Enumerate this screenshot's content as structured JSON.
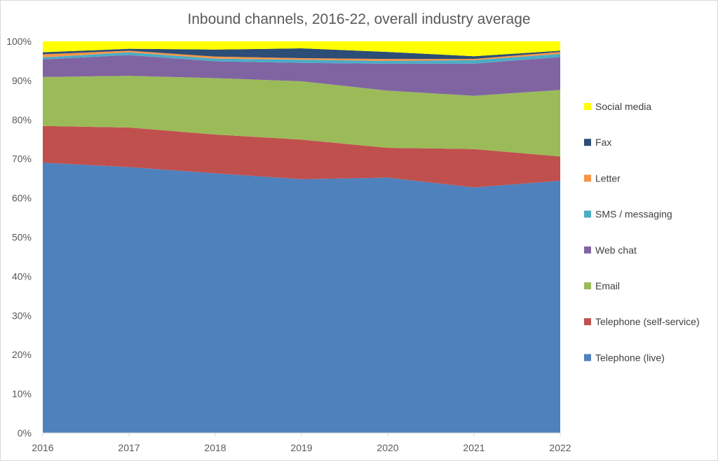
{
  "chart_data": {
    "type": "area",
    "stacked": true,
    "title": "Inbound channels, 2016-22, overall industry average",
    "xlabel": "",
    "ylabel": "",
    "categories": [
      "2016",
      "2017",
      "2018",
      "2019",
      "2020",
      "2021",
      "2022"
    ],
    "ylim": [
      0,
      100
    ],
    "y_ticks": [
      "0%",
      "10%",
      "20%",
      "30%",
      "40%",
      "50%",
      "60%",
      "70%",
      "80%",
      "90%",
      "100%"
    ],
    "grid": false,
    "legend_placement": "right",
    "series": [
      {
        "name": "Telephone (live)",
        "color": "#4F81BD",
        "values": [
          69.0,
          67.9,
          66.3,
          64.8,
          65.2,
          62.7,
          64.4
        ]
      },
      {
        "name": "Telephone (self-service)",
        "color": "#C0504D",
        "values": [
          9.4,
          10.1,
          9.9,
          10.1,
          7.6,
          9.8,
          6.2
        ]
      },
      {
        "name": "Email",
        "color": "#9BBB59",
        "values": [
          12.5,
          13.2,
          14.4,
          14.9,
          14.6,
          13.6,
          17.0
        ]
      },
      {
        "name": "Web chat",
        "color": "#8064A2",
        "values": [
          4.5,
          5.3,
          4.3,
          4.7,
          6.9,
          8.2,
          8.4
        ]
      },
      {
        "name": "SMS / messaging",
        "color": "#4BACC6",
        "values": [
          0.5,
          0.7,
          0.7,
          0.8,
          0.7,
          0.9,
          0.8
        ]
      },
      {
        "name": "Letter",
        "color": "#F79646",
        "values": [
          0.8,
          0.4,
          0.5,
          0.4,
          0.5,
          0.3,
          0.5
        ]
      },
      {
        "name": "Fax",
        "color": "#2C4D75",
        "values": [
          0.5,
          0.5,
          1.8,
          2.5,
          1.8,
          0.7,
          0.3
        ]
      },
      {
        "name": "Social media",
        "color": "#FFFF00",
        "values": [
          2.8,
          1.9,
          2.1,
          1.8,
          2.7,
          3.8,
          2.4
        ]
      }
    ]
  }
}
